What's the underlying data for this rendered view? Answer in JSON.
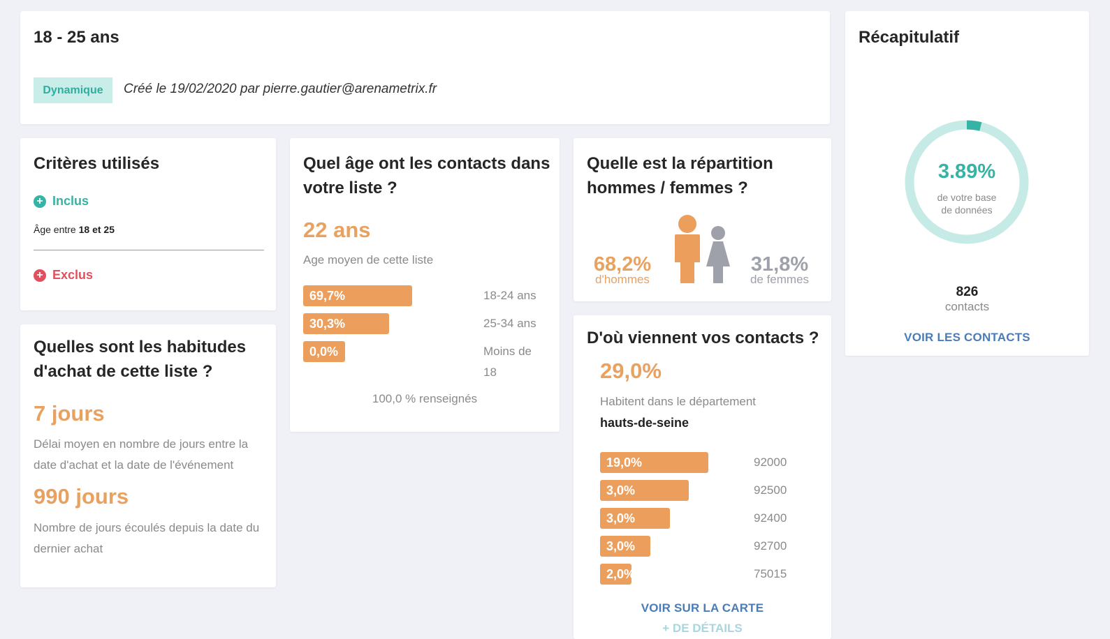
{
  "header": {
    "title": "18 - 25 ans",
    "badge": "Dynamique",
    "created": "Créé le 19/02/2020 par pierre.gautier@arenametrix.fr"
  },
  "criteria": {
    "title": "Critères utilisés",
    "included_label": "Inclus",
    "included_prefix": "Âge entre",
    "included_value": "18 et 25",
    "excluded_label": "Exclus"
  },
  "age": {
    "title": "Quel âge ont les contacts dans votre liste ?",
    "average": "22 ans",
    "average_caption": "Age moyen de cette liste",
    "bars": [
      {
        "value": "69,7%",
        "label": "18-24 ans",
        "fraction": 0.697
      },
      {
        "value": "30,3%",
        "label": "25-34 ans",
        "fraction": 0.303
      },
      {
        "value": "0,0%",
        "label": "Moins de 18",
        "fraction": 0.0
      }
    ],
    "footer": "100,0 % renseignés"
  },
  "gender": {
    "title": "Quelle est la répartition hommes / femmes ?",
    "men_pct": "68,2%",
    "men_label": "d'hommes",
    "women_pct": "31,8%",
    "women_label": "de femmes",
    "icons": [
      "man-icon",
      "woman-icon"
    ]
  },
  "location": {
    "title": "D'où viennent vos contacts ?",
    "pct": "29,0%",
    "caption": "Habitent dans le département",
    "department": "hauts-de-seine",
    "bars": [
      {
        "value": "19,0%",
        "label": "92000",
        "fraction": 0.19
      },
      {
        "value": "3,0%",
        "label": "92500",
        "fraction": 0.03
      },
      {
        "value": "3,0%",
        "label": "92400",
        "fraction": 0.03
      },
      {
        "value": "3,0%",
        "label": "92700",
        "fraction": 0.03
      },
      {
        "value": "2,0%",
        "label": "75015",
        "fraction": 0.02
      }
    ],
    "map_link": "VOIR SUR LA CARTE",
    "details_link": "+ DE DÉTAILS"
  },
  "habits": {
    "title": "Quelles sont les habitudes d'achat de cette liste ?",
    "delay": "7 jours",
    "delay_caption": "Délai moyen en nombre de jours entre la date d'achat et la date de l'événement",
    "since": "990 jours",
    "since_caption": "Nombre de jours écoulés depuis la date du dernier achat"
  },
  "summary": {
    "title": "Récapitulatif",
    "pct": "3.89%",
    "pct_value": 3.89,
    "caption": "de votre base de données",
    "count": "826",
    "count_label": "contacts",
    "link": "VOIR LES CONTACTS"
  },
  "colors": {
    "accent_orange": "#ec9f5c",
    "teal": "#35b3a5",
    "teal_light": "#c6ebe6",
    "red": "#e0515d",
    "link_blue": "#4a7cb7",
    "background": "#f0f1f6"
  }
}
